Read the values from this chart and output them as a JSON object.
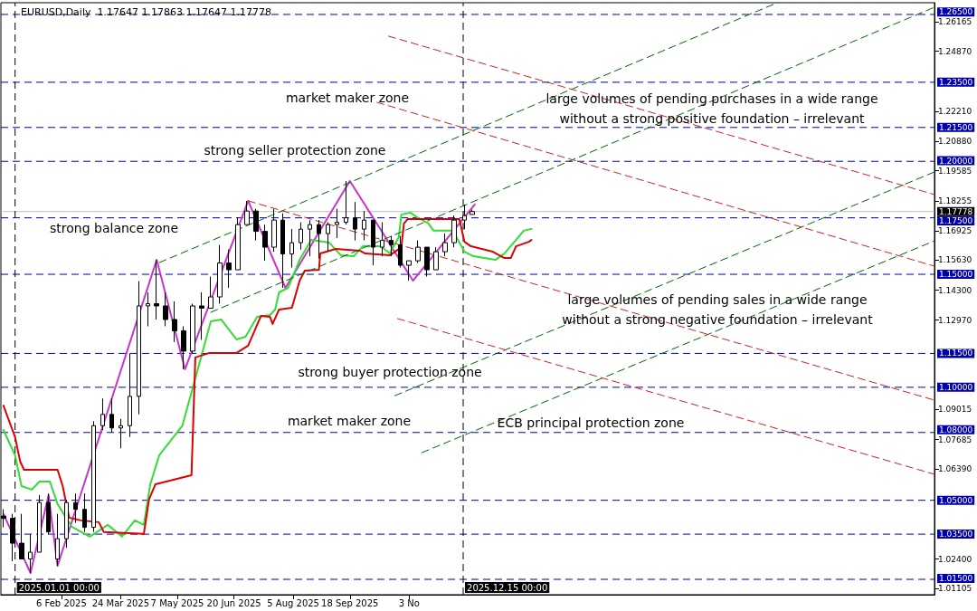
{
  "chart_data": {
    "type": "candlestick",
    "title": "EURUSD,Daily  1.17647 1.17863 1.17647 1.17778",
    "xlim": [
      "2024-12-21",
      "2026-12-16"
    ],
    "ylim": [
      1.0082,
      1.2702
    ],
    "xticks": [
      {
        "value": "2025-02-06",
        "label": "6 Feb 2025"
      },
      {
        "value": "2025-03-24",
        "label": "24 Mar 2025"
      },
      {
        "value": "2025-05-07",
        "label": "7 May 2025"
      },
      {
        "value": "2025-06-20",
        "label": "20 Jun 2025"
      },
      {
        "value": "2025-08-05",
        "label": "5 Aug 2025"
      },
      {
        "value": "2025-09-18",
        "label": "18 Sep 2025"
      },
      {
        "value": "2025-11-03",
        "label": "3 No"
      }
    ],
    "yticks": [
      {
        "value": 1.26165,
        "label": "1.26165"
      },
      {
        "value": 1.2487,
        "label": "1.24870"
      },
      {
        "value": 1.2221,
        "label": "1.22210"
      },
      {
        "value": 1.2088,
        "label": "1.20880"
      },
      {
        "value": 1.19585,
        "label": "1.19585"
      },
      {
        "value": 1.18255,
        "label": "1.18255"
      },
      {
        "value": 1.16925,
        "label": "1.16925"
      },
      {
        "value": 1.1563,
        "label": "1.15630"
      },
      {
        "value": 1.143,
        "label": "1.14300"
      },
      {
        "value": 1.1297,
        "label": "1.12970"
      },
      {
        "value": 1.09015,
        "label": "1.09015"
      },
      {
        "value": 1.07685,
        "label": "1.07685"
      },
      {
        "value": 1.0639,
        "label": "1.06390"
      },
      {
        "value": 1.024,
        "label": "1.02400"
      },
      {
        "value": 1.01105,
        "label": "1.01105"
      }
    ],
    "marker": "none",
    "series": [
      {
        "color": "#000000",
        "x": [
          "2024-12-23",
          "2024-12-30",
          "2025-01-06",
          "2025-01-13",
          "2025-01-20",
          "2025-01-27",
          "2025-02-03",
          "2025-02-10",
          "2025-02-17",
          "2025-02-24",
          "2025-03-03",
          "2025-03-10",
          "2025-03-17",
          "2025-03-24",
          "2025-03-31",
          "2025-04-07",
          "2025-04-14",
          "2025-04-21",
          "2025-04-28",
          "2025-05-05",
          "2025-05-12",
          "2025-05-19",
          "2025-05-26",
          "2025-06-02",
          "2025-06-09",
          "2025-06-16",
          "2025-06-23",
          "2025-06-30",
          "2025-07-07",
          "2025-07-14",
          "2025-07-21",
          "2025-07-28",
          "2025-08-04",
          "2025-08-11",
          "2025-08-18",
          "2025-08-25",
          "2025-09-01",
          "2025-09-08",
          "2025-09-15",
          "2025-09-22",
          "2025-09-29",
          "2025-10-06",
          "2025-10-13",
          "2025-10-20",
          "2025-10-27",
          "2025-11-03",
          "2025-11-10",
          "2025-11-17",
          "2025-11-24",
          "2025-12-01",
          "2025-12-08",
          "2025-12-16",
          "2025-12-22"
        ],
        "ohlc": [
          [
            1.043,
            1.046,
            1.038,
            1.042
          ],
          [
            1.042,
            1.044,
            1.023,
            1.031
          ],
          [
            1.031,
            1.044,
            1.024,
            1.024
          ],
          [
            1.024,
            1.035,
            1.0178,
            1.027
          ],
          [
            1.027,
            1.0523,
            1.027,
            1.049
          ],
          [
            1.049,
            1.053,
            1.035,
            1.036
          ],
          [
            1.024,
            1.044,
            1.021,
            1.033
          ],
          [
            1.033,
            1.05,
            1.029,
            1.049
          ],
          [
            1.049,
            1.053,
            1.04,
            1.046
          ],
          [
            1.046,
            1.053,
            1.036,
            1.038
          ],
          [
            1.038,
            1.085,
            1.036,
            1.083
          ],
          [
            1.083,
            1.095,
            1.081,
            1.088
          ],
          [
            1.088,
            1.095,
            1.08,
            1.082
          ],
          [
            1.082,
            1.086,
            1.073,
            1.083
          ],
          [
            1.083,
            1.115,
            1.078,
            1.096
          ],
          [
            1.096,
            1.147,
            1.088,
            1.136
          ],
          [
            1.136,
            1.142,
            1.127,
            1.137
          ],
          [
            1.137,
            1.1564,
            1.13,
            1.136
          ],
          [
            1.136,
            1.142,
            1.127,
            1.13
          ],
          [
            1.13,
            1.138,
            1.12,
            1.125
          ],
          [
            1.125,
            1.127,
            1.108,
            1.116
          ],
          [
            1.116,
            1.137,
            1.115,
            1.136
          ],
          [
            1.136,
            1.142,
            1.121,
            1.135
          ],
          [
            1.135,
            1.149,
            1.135,
            1.14
          ],
          [
            1.14,
            1.163,
            1.137,
            1.155
          ],
          [
            1.155,
            1.161,
            1.144,
            1.152
          ],
          [
            1.152,
            1.175,
            1.152,
            1.172
          ],
          [
            1.172,
            1.1825,
            1.172,
            1.178
          ],
          [
            1.178,
            1.179,
            1.165,
            1.169
          ],
          [
            1.169,
            1.172,
            1.156,
            1.162
          ],
          [
            1.162,
            1.179,
            1.16,
            1.174
          ],
          [
            1.174,
            1.177,
            1.144,
            1.159
          ],
          [
            1.159,
            1.17,
            1.153,
            1.164
          ],
          [
            1.164,
            1.173,
            1.161,
            1.17
          ],
          [
            1.17,
            1.174,
            1.158,
            1.172
          ],
          [
            1.172,
            1.174,
            1.157,
            1.168
          ],
          [
            1.168,
            1.173,
            1.16,
            1.172
          ],
          [
            1.172,
            1.179,
            1.166,
            1.173
          ],
          [
            1.173,
            1.1913,
            1.172,
            1.175
          ],
          [
            1.175,
            1.182,
            1.165,
            1.17
          ],
          [
            1.17,
            1.178,
            1.165,
            1.174
          ],
          [
            1.174,
            1.174,
            1.154,
            1.162
          ],
          [
            1.162,
            1.173,
            1.158,
            1.165
          ],
          [
            1.165,
            1.167,
            1.158,
            1.163
          ],
          [
            1.163,
            1.167,
            1.153,
            1.154
          ],
          [
            1.154,
            1.156,
            1.1472,
            1.156
          ],
          [
            1.156,
            1.165,
            1.155,
            1.162
          ],
          [
            1.162,
            1.162,
            1.149,
            1.152
          ],
          [
            1.152,
            1.162,
            1.152,
            1.16
          ],
          [
            1.16,
            1.168,
            1.158,
            1.164
          ],
          [
            1.164,
            1.176,
            1.162,
            1.174
          ],
          [
            1.174,
            1.1809,
            1.17,
            1.176
          ],
          [
            1.17647,
            1.17863,
            1.17647,
            1.17778
          ]
        ]
      },
      {
        "type": "line",
        "color": "#cc33cc",
        "line_style": "solid",
        "x": [
          "2024-12-23",
          "2025-01-13",
          "2025-01-27",
          "2025-02-03",
          "2025-04-21",
          "2025-05-13",
          "2025-07-01",
          "2025-07-30",
          "2025-09-18",
          "2025-11-06",
          "2025-12-24"
        ],
        "values": [
          1.0439,
          1.0178,
          1.0523,
          1.021,
          1.1564,
          1.108,
          1.1825,
          1.144,
          1.1913,
          1.1472,
          1.1809
        ]
      },
      {
        "type": "line",
        "color": "#33dd33",
        "line_style": "solid",
        "x": [
          "2024-12-23",
          "2025-01-01",
          "2025-01-06",
          "2025-01-14",
          "2025-01-20",
          "2025-01-28",
          "2025-02-03",
          "2025-02-14",
          "2025-02-28",
          "2025-03-14",
          "2025-03-25",
          "2025-04-04",
          "2025-04-11",
          "2025-04-16",
          "2025-04-23",
          "2025-05-11",
          "2025-05-25",
          "2025-06-02",
          "2025-06-10",
          "2025-06-22",
          "2025-06-29",
          "2025-07-08",
          "2025-07-18",
          "2025-07-22",
          "2025-07-25",
          "2025-08-01",
          "2025-08-10",
          "2025-08-19",
          "2025-09-02",
          "2025-09-11",
          "2025-09-21",
          "2025-09-28",
          "2025-10-12",
          "2025-10-19",
          "2025-10-26",
          "2025-10-28",
          "2025-11-04",
          "2025-11-09",
          "2025-11-18",
          "2025-11-22",
          "2025-12-07",
          "2025-12-16",
          "2025-12-23",
          "2026-01-09",
          "2026-01-16",
          "2026-01-25",
          "2026-01-31",
          "2026-02-06"
        ],
        "values": [
          1.0811,
          1.0699,
          1.0563,
          1.0547,
          1.0583,
          1.0583,
          1.0483,
          1.0383,
          1.0339,
          1.0391,
          1.0339,
          1.0411,
          1.0391,
          1.0571,
          1.0699,
          1.0831,
          1.1124,
          1.1292,
          1.13,
          1.1212,
          1.1224,
          1.1312,
          1.132,
          1.1344,
          1.142,
          1.144,
          1.1564,
          1.1652,
          1.164,
          1.1584,
          1.158,
          1.1624,
          1.1624,
          1.1592,
          1.1664,
          1.1765,
          1.1773,
          1.1753,
          1.1725,
          1.1693,
          1.1693,
          1.16,
          1.158,
          1.1564,
          1.1592,
          1.1652,
          1.1693,
          1.1701
        ]
      },
      {
        "type": "line",
        "color": "#dd0000",
        "line_style": "solid",
        "x": [
          "2024-12-23",
          "2025-01-01",
          "2025-01-05",
          "2025-01-08",
          "2025-02-03",
          "2025-02-07",
          "2025-02-12",
          "2025-02-21",
          "2025-03-07",
          "2025-03-11",
          "2025-04-11",
          "2025-04-15",
          "2025-04-20",
          "2025-05-18",
          "2025-05-21",
          "2025-06-01",
          "2025-06-22",
          "2025-07-01",
          "2025-07-11",
          "2025-07-18",
          "2025-07-20",
          "2025-07-25",
          "2025-08-04",
          "2025-08-10",
          "2025-08-14",
          "2025-08-25",
          "2025-08-26",
          "2025-09-07",
          "2025-09-26",
          "2025-09-30",
          "2025-10-19",
          "2025-10-28",
          "2025-10-30",
          "2025-11-02",
          "2025-12-12",
          "2025-12-16",
          "2025-12-21",
          "2026-01-07",
          "2026-01-16",
          "2026-01-21",
          "2026-01-25",
          "2026-02-04",
          "2026-02-06"
        ],
        "values": [
          1.0919,
          1.0779,
          1.0671,
          1.0635,
          1.0635,
          1.0563,
          1.0423,
          1.0411,
          1.0403,
          1.0359,
          1.0351,
          1.0503,
          1.0571,
          1.0611,
          1.1132,
          1.1152,
          1.1152,
          1.1184,
          1.1316,
          1.1312,
          1.128,
          1.1344,
          1.1352,
          1.1472,
          1.1516,
          1.152,
          1.1592,
          1.1612,
          1.1604,
          1.1592,
          1.1584,
          1.162,
          1.1725,
          1.1745,
          1.1745,
          1.1644,
          1.1624,
          1.16,
          1.1572,
          1.1572,
          1.1624,
          1.1644,
          1.1652
        ]
      },
      {
        "type": "line",
        "color": "#006600",
        "line_style": "dashed",
        "x": [
          "2025-04-23",
          "2026-08-16"
        ],
        "values": [
          1.1552,
          1.2702
        ]
      },
      {
        "type": "line",
        "color": "#006600",
        "line_style": "dashed",
        "x": [
          "2025-06-02",
          "2026-12-16"
        ],
        "values": [
          1.1332,
          1.2682
        ]
      },
      {
        "type": "line",
        "color": "#006600",
        "line_style": "dashed",
        "x": [
          "2025-10-23",
          "2026-12-16"
        ],
        "values": [
          1.0963,
          1.1953
        ]
      },
      {
        "type": "line",
        "color": "#006600",
        "line_style": "dashed",
        "x": [
          "2025-11-13",
          "2026-12-16"
        ],
        "values": [
          1.0711,
          1.1648
        ]
      },
      {
        "type": "line",
        "color": "#cc2222",
        "line_style": "dashed",
        "x": [
          "2025-10-18",
          "2026-12-16"
        ],
        "values": [
          1.2554,
          1.1853
        ]
      },
      {
        "type": "line",
        "color": "#cc2222",
        "line_style": "dashed",
        "x": [
          "2025-10-09",
          "2026-12-16"
        ],
        "values": [
          1.2261,
          1.1536
        ]
      },
      {
        "type": "line",
        "color": "#cc2222",
        "line_style": "dashed",
        "x": [
          "2025-07-01",
          "2026-12-16"
        ],
        "values": [
          1.1825,
          1.0943
        ]
      },
      {
        "type": "line",
        "color": "#cc2222",
        "line_style": "dashed",
        "x": [
          "2025-10-25",
          "2026-12-16"
        ],
        "values": [
          1.1304,
          1.0615
        ]
      }
    ],
    "ref_lines": [
      {
        "axis": "y",
        "value": 1.265,
        "label": "1.26500",
        "color": "#0000aa",
        "line_style": "dashed"
      },
      {
        "axis": "y",
        "value": 1.235,
        "label": "1.23500",
        "color": "#0000aa",
        "line_style": "dashed"
      },
      {
        "axis": "y",
        "value": 1.215,
        "label": "1.21500",
        "color": "#0000aa",
        "line_style": "dashed"
      },
      {
        "axis": "y",
        "value": 1.2,
        "label": "1.20000",
        "color": "#0000aa",
        "line_style": "dashed"
      },
      {
        "axis": "y",
        "value": 1.17778,
        "label": "1.17778",
        "color": "#c0c0c0",
        "line_style": "solid"
      },
      {
        "axis": "y",
        "value": 1.175,
        "label": "1.17500",
        "color": "#0000aa",
        "line_style": "dashed"
      },
      {
        "axis": "y",
        "value": 1.15,
        "label": "1.15000",
        "color": "#0000aa",
        "line_style": "dashed"
      },
      {
        "axis": "y",
        "value": 1.115,
        "label": "1.11500",
        "color": "#0000aa",
        "line_style": "dashed"
      },
      {
        "axis": "y",
        "value": 1.1,
        "label": "1.10000",
        "color": "#0000aa",
        "line_style": "dashed"
      },
      {
        "axis": "y",
        "value": 1.08,
        "label": "1.08000",
        "color": "#0000aa",
        "line_style": "dashed"
      },
      {
        "axis": "y",
        "value": 1.05,
        "label": "1.05000",
        "color": "#0000aa",
        "line_style": "dashed"
      },
      {
        "axis": "y",
        "value": 1.035,
        "label": "1.03500",
        "color": "#0000aa",
        "line_style": "dashed"
      },
      {
        "axis": "y",
        "value": 1.015,
        "label": "1.01500",
        "color": "#0000aa",
        "line_style": "dashed"
      },
      {
        "axis": "x",
        "value": "2025-01-01",
        "label": "2025.01.01 00:00",
        "color": "#000000",
        "line_style": "dashed"
      },
      {
        "axis": "x",
        "value": "2025-12-15",
        "label": "2025.12.15 00:00",
        "color": "#000000",
        "line_style": "dashed"
      }
    ],
    "annotations": [
      "market maker zone",
      "large volumes of pending purchases in a wide range\nwithout a strong positive foundation – irrelevant",
      "strong seller protection zone",
      "strong balance zone",
      "large volumes of pending sales in a wide range\nwithout a strong negative foundation – irrelevant",
      "strong buyer protection zone",
      "market maker zone",
      "ECB principal protection zone"
    ]
  }
}
